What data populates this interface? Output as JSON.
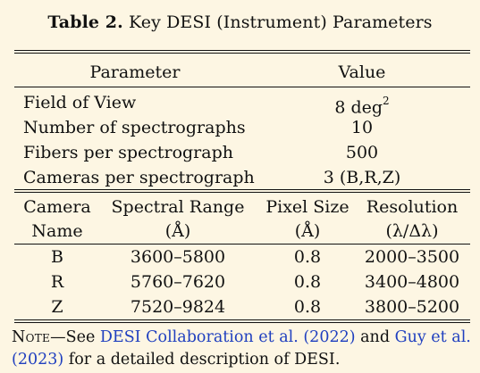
{
  "caption": {
    "label": "Table 2.",
    "title": "Key DESI (Instrument) Parameters"
  },
  "table1": {
    "headers": [
      "Parameter",
      "Value"
    ],
    "rows": [
      {
        "param": "Field of View",
        "value": "8 deg",
        "sup": "2"
      },
      {
        "param": "Number of spectrographs",
        "value": "10"
      },
      {
        "param": "Fibers per spectrograph",
        "value": "500"
      },
      {
        "param": "Cameras per spectrograph",
        "value": "3 (B,R,Z)"
      }
    ]
  },
  "table2": {
    "header_line1": [
      "Camera",
      "Spectral Range",
      "Pixel Size",
      "Resolution"
    ],
    "header_line2": [
      "Name",
      "(Å)",
      "(Å)",
      "(λ/Δλ)"
    ],
    "rows": [
      {
        "camera": "B",
        "range": "3600–5800",
        "pixel": "0.8",
        "resolution": "2000–3500"
      },
      {
        "camera": "R",
        "range": "5760–7620",
        "pixel": "0.8",
        "resolution": "3400–4800"
      },
      {
        "camera": "Z",
        "range": "7520–9824",
        "pixel": "0.8",
        "resolution": "3800–5200"
      }
    ]
  },
  "note": {
    "label": "Note",
    "dash": "—",
    "text1": "See ",
    "link1": "DESI Collaboration et al. (2022)",
    "text2": " and ",
    "link2": "Guy et al. (2023)",
    "text3": " for a detailed description of DESI."
  },
  "colors": {
    "background": "#fdf6e3",
    "link": "#1f3fbf"
  }
}
